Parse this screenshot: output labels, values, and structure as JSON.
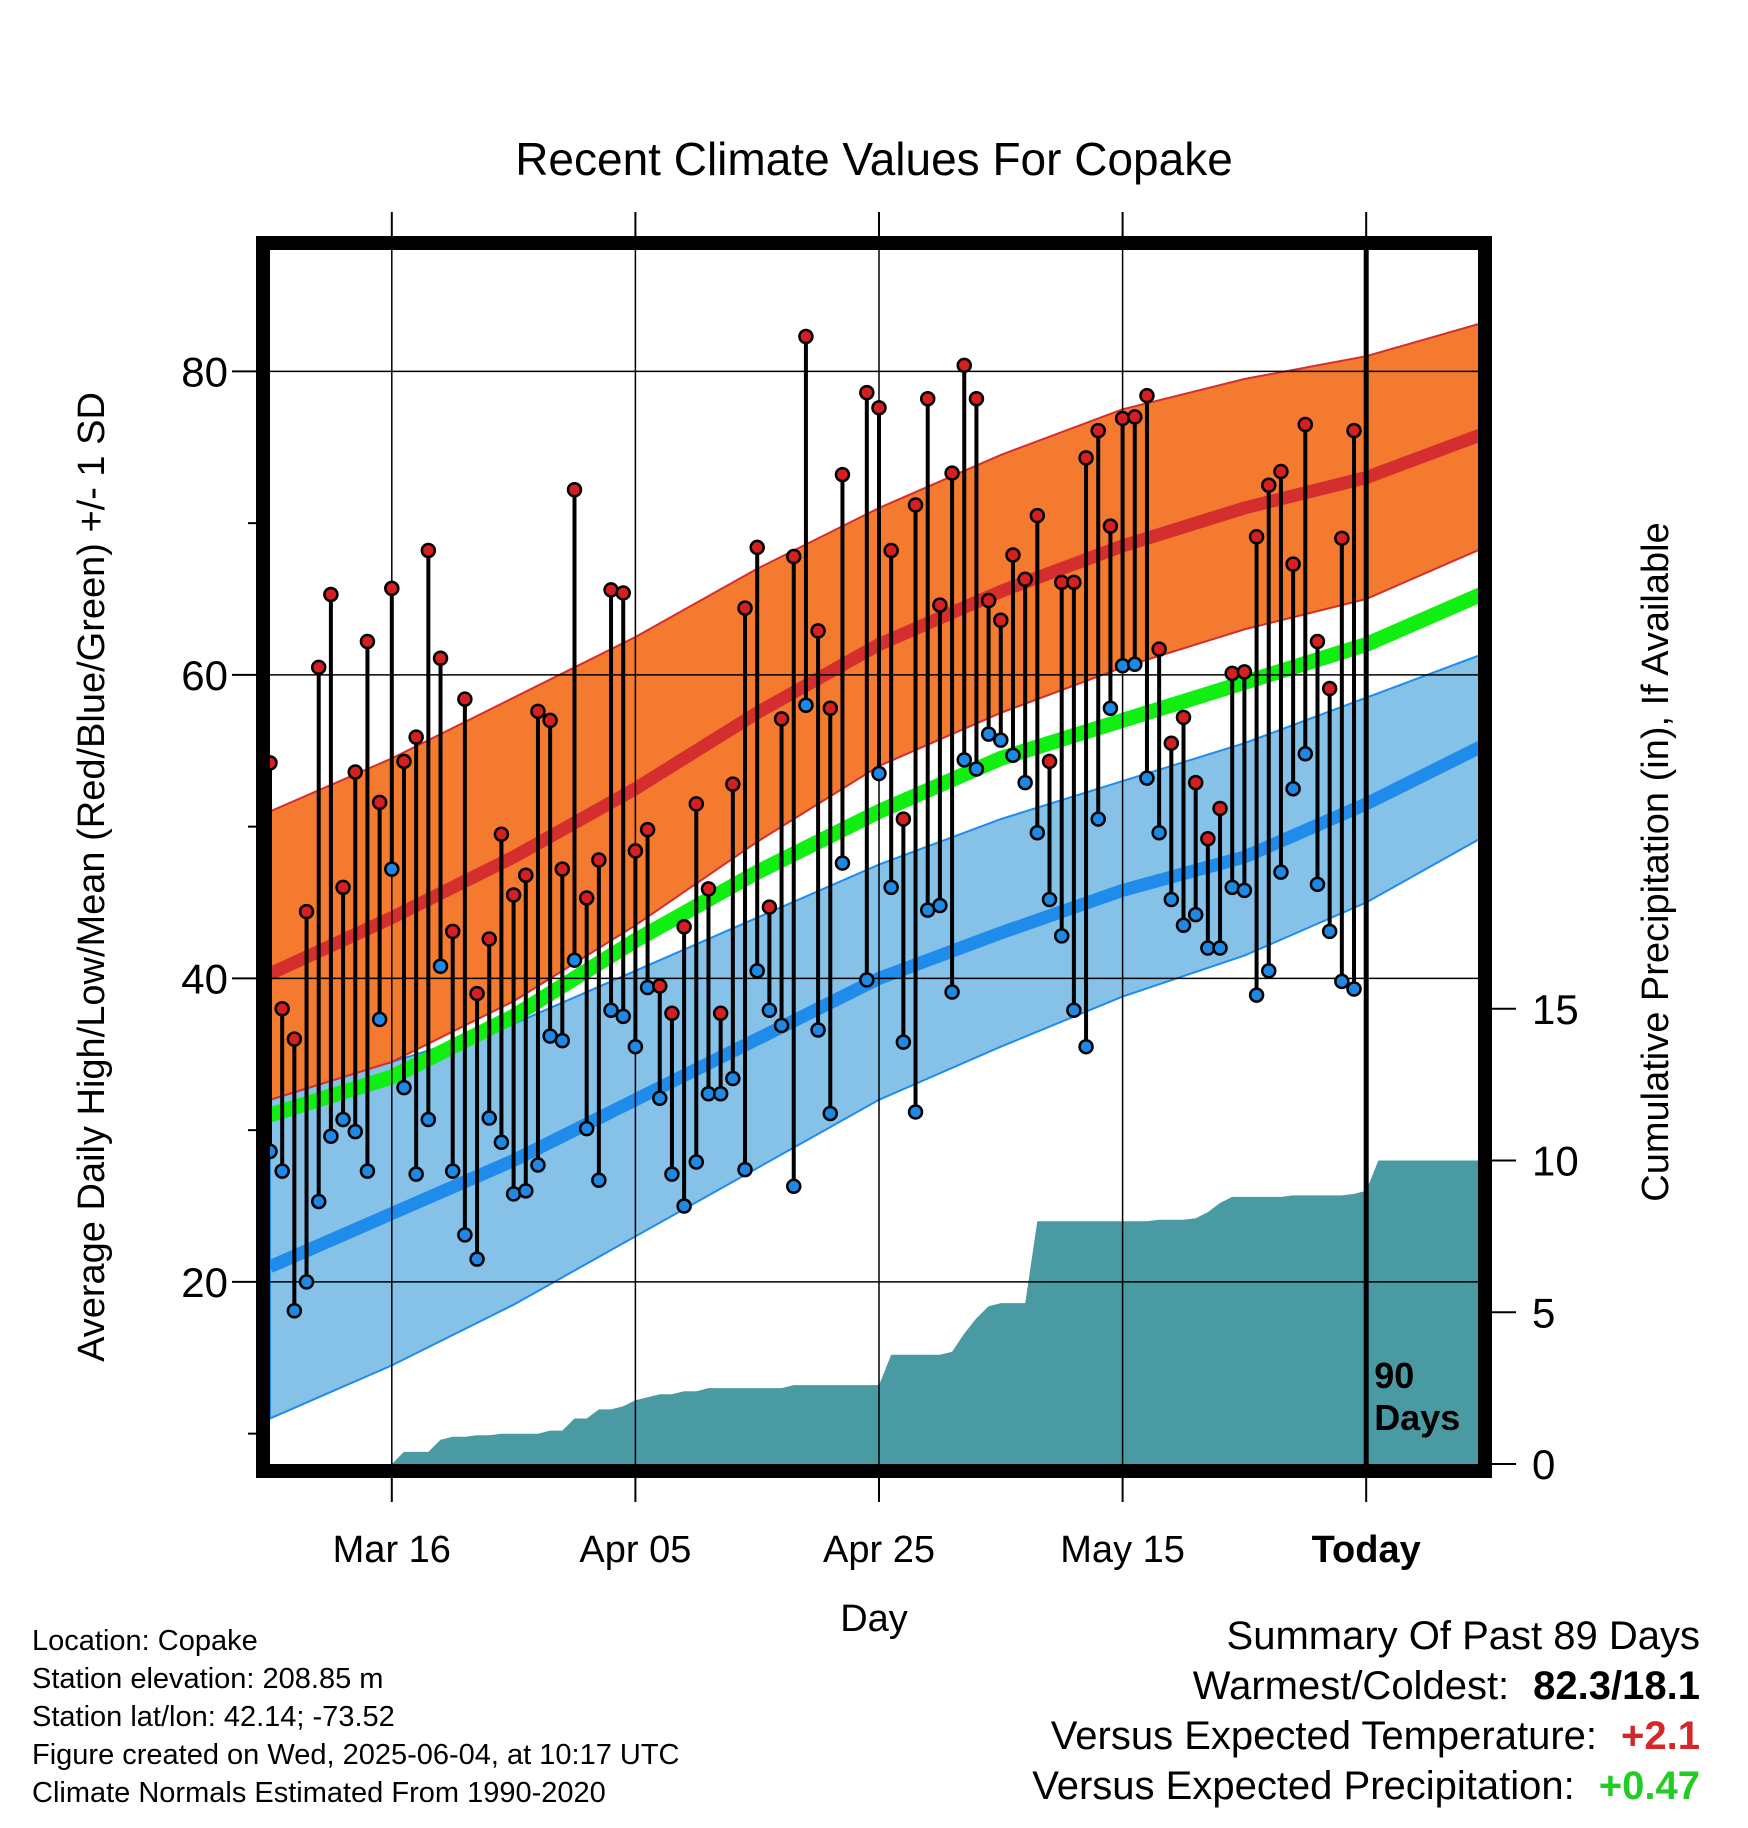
{
  "colors": {
    "high_band": "#f47a30",
    "normal_high": "#d42e2e",
    "normal_mean": "#11ee11",
    "low_band": "#86c1e8",
    "normal_low": "#1f8ceb",
    "precip": "#4a9aa4",
    "high_marker": "#d42020",
    "low_marker": "#1e88e5"
  },
  "chart_data": {
    "type": "line",
    "title": "Recent Climate Values For Copake",
    "xlabel": "Day",
    "ylabel": "Average Daily High/Low/Mean (Red/Blue/Green) +/- 1 SD",
    "y2label": "Cumulative Precipitation (in), If Available",
    "x_ticks": [
      "Mar 16",
      "Apr 05",
      "Apr 25",
      "May 15",
      "Today"
    ],
    "x_tick_day_index": [
      10,
      30,
      50,
      70,
      90
    ],
    "day_index_range": [
      0,
      100
    ],
    "ylim": [
      8,
      88
    ],
    "y_ticks": [
      20,
      40,
      60,
      80
    ],
    "y2lim": [
      0,
      40
    ],
    "y2_ticks": [
      0,
      5,
      10,
      15
    ],
    "grid": true,
    "today_marker_label": "90\nDays",
    "normals": {
      "day_index": [
        0,
        10,
        20,
        30,
        40,
        50,
        60,
        70,
        80,
        90,
        100
      ],
      "high_mean": [
        40.3,
        44.0,
        48.0,
        52.5,
        57.5,
        62.0,
        65.5,
        68.5,
        71.0,
        73.0,
        76.0
      ],
      "high_upper": [
        51.0,
        54.5,
        58.5,
        62.5,
        67.0,
        71.0,
        74.5,
        77.5,
        79.5,
        81.0,
        83.3
      ],
      "high_lower": [
        32.0,
        34.5,
        38.5,
        43.5,
        49.0,
        54.0,
        57.5,
        60.5,
        63.0,
        65.0,
        68.5
      ],
      "mean": [
        31.0,
        33.5,
        37.5,
        42.5,
        47.0,
        51.0,
        54.5,
        57.0,
        59.5,
        62.0,
        65.5
      ],
      "low_mean": [
        21.0,
        24.5,
        28.0,
        32.0,
        36.0,
        40.0,
        43.0,
        45.8,
        48.0,
        51.5,
        55.5
      ],
      "low_upper": [
        32.0,
        34.5,
        37.0,
        40.5,
        44.0,
        47.5,
        50.5,
        53.0,
        55.5,
        58.5,
        61.5
      ],
      "low_lower": [
        11.0,
        14.5,
        18.5,
        23.0,
        27.5,
        32.0,
        35.5,
        38.8,
        41.5,
        45.0,
        49.5
      ]
    },
    "observed": {
      "start_day_index": 0,
      "high": [
        54.2,
        38.0,
        36.0,
        44.4,
        60.5,
        65.3,
        46.0,
        53.6,
        62.2,
        51.6,
        65.7,
        54.3,
        55.9,
        68.2,
        61.1,
        43.1,
        58.4,
        39.0,
        42.6,
        49.5,
        45.5,
        46.8,
        57.6,
        57.0,
        47.2,
        72.2,
        45.3,
        47.8,
        65.6,
        65.4,
        48.4,
        49.8,
        39.5,
        37.7,
        43.4,
        51.5,
        45.9,
        37.7,
        52.8,
        64.4,
        68.4,
        44.7,
        57.1,
        67.8,
        82.3,
        62.9,
        57.8,
        73.2,
        null,
        78.6,
        77.6,
        68.2,
        50.5,
        71.2,
        78.2,
        64.6,
        73.3,
        80.4,
        78.2,
        64.9,
        63.6,
        67.9,
        66.3,
        70.5,
        54.3,
        66.1,
        66.1,
        74.3,
        76.1,
        69.8,
        76.9,
        77.0,
        78.4,
        61.7,
        55.5,
        57.2,
        52.9,
        49.2,
        51.2,
        60.1,
        60.2,
        69.1,
        72.5,
        73.4,
        67.3,
        76.5,
        62.2,
        59.1,
        69.0,
        76.1
      ],
      "low": [
        28.6,
        27.3,
        18.1,
        20.0,
        25.3,
        29.6,
        30.7,
        29.9,
        27.3,
        37.3,
        47.2,
        32.8,
        27.1,
        30.7,
        40.8,
        27.3,
        23.1,
        21.5,
        30.8,
        29.2,
        25.8,
        26.0,
        27.7,
        36.2,
        35.9,
        41.2,
        30.1,
        26.7,
        37.9,
        37.5,
        35.5,
        39.4,
        32.1,
        27.1,
        25.0,
        27.9,
        32.4,
        32.4,
        33.4,
        27.4,
        40.5,
        37.9,
        36.9,
        26.3,
        58.0,
        36.6,
        31.1,
        47.6,
        null,
        39.9,
        53.5,
        46.0,
        35.8,
        31.2,
        44.5,
        44.8,
        39.1,
        54.4,
        53.8,
        56.1,
        55.7,
        54.7,
        52.9,
        49.6,
        45.2,
        42.8,
        37.9,
        35.5,
        50.5,
        57.8,
        60.6,
        60.7,
        53.2,
        49.6,
        45.2,
        43.5,
        44.2,
        42.0,
        42.0,
        46.0,
        45.8,
        38.9,
        40.5,
        47.0,
        52.5,
        54.8,
        46.2,
        43.1,
        39.8,
        39.3
      ]
    },
    "precip_cumulative": {
      "day_index": [
        0,
        10,
        11,
        12,
        13,
        14,
        15,
        16,
        17,
        18,
        19,
        20,
        21,
        22,
        23,
        24,
        25,
        26,
        27,
        28,
        29,
        30,
        31,
        32,
        33,
        34,
        35,
        36,
        37,
        38,
        39,
        40,
        41,
        42,
        43,
        44,
        45,
        46,
        47,
        48,
        49,
        50,
        51,
        52,
        53,
        54,
        55,
        56,
        57,
        58,
        59,
        60,
        61,
        62,
        63,
        64,
        65,
        66,
        67,
        68,
        69,
        70,
        71,
        72,
        73,
        74,
        75,
        76,
        77,
        78,
        79,
        80,
        81,
        82,
        83,
        84,
        85,
        86,
        87,
        88,
        89,
        90,
        91,
        92,
        93,
        94,
        95,
        96,
        97,
        98,
        99,
        100
      ],
      "inches": [
        0,
        0,
        0.4,
        0.4,
        0.4,
        0.8,
        0.9,
        0.9,
        0.95,
        0.95,
        1.0,
        1.0,
        1.0,
        1.0,
        1.1,
        1.1,
        1.5,
        1.5,
        1.8,
        1.8,
        1.9,
        2.1,
        2.2,
        2.3,
        2.3,
        2.4,
        2.4,
        2.5,
        2.5,
        2.5,
        2.5,
        2.5,
        2.5,
        2.5,
        2.6,
        2.6,
        2.6,
        2.6,
        2.6,
        2.6,
        2.6,
        2.6,
        3.6,
        3.6,
        3.6,
        3.6,
        3.6,
        3.7,
        4.3,
        4.8,
        5.2,
        5.3,
        5.3,
        5.3,
        8.0,
        8.0,
        8.0,
        8.0,
        8.0,
        8.0,
        8.0,
        8.0,
        8.0,
        8.0,
        8.05,
        8.05,
        8.05,
        8.1,
        8.3,
        8.6,
        8.8,
        8.8,
        8.8,
        8.8,
        8.8,
        8.85,
        8.85,
        8.85,
        8.85,
        8.85,
        8.9,
        9.0,
        10.0,
        10.0,
        10.0,
        10.0,
        10.0,
        10.0,
        10.0,
        10.0,
        10.0,
        10.0
      ]
    }
  },
  "info": {
    "location": "Location: Copake",
    "elevation": "Station elevation: 208.85 m",
    "latlon": "Station lat/lon: 42.14; -73.52",
    "created": "Figure created on Wed, 2025-06-04, at 10:17 UTC",
    "normals": "Climate Normals Estimated From 1990-2020"
  },
  "summary": {
    "heading": "Summary Of Past 89 Days",
    "warmest_label": "Warmest/Coldest:",
    "warmest_value": "82.3/18.1",
    "temp_label": "Versus Expected Temperature:",
    "temp_value": "+2.1",
    "precip_label": "Versus Expected Precipitation:",
    "precip_value": "+0.47"
  }
}
